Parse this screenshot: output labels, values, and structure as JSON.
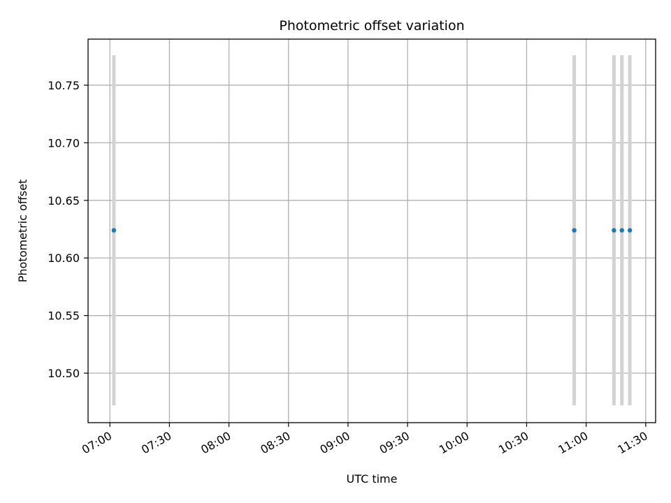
{
  "chart_data": {
    "type": "scatter",
    "title": "Photometric offset variation",
    "xlabel": "UTC time",
    "ylabel": "Photometric offset",
    "grid": true,
    "x_ticks": [
      "07:00",
      "07:30",
      "08:00",
      "08:30",
      "09:00",
      "09:30",
      "10:00",
      "10:30",
      "11:00",
      "11:30"
    ],
    "y_ticks": [
      "10.50",
      "10.55",
      "10.60",
      "10.65",
      "10.70",
      "10.75"
    ],
    "xlim": [
      "06:49",
      "11:35"
    ],
    "ylim": [
      10.457,
      10.79
    ],
    "points": [
      {
        "x": "07:02",
        "y": 10.624,
        "err_low": 10.472,
        "err_high": 10.776
      },
      {
        "x": "10:54",
        "y": 10.624,
        "err_low": 10.472,
        "err_high": 10.776
      },
      {
        "x": "11:14",
        "y": 10.624,
        "err_low": 10.472,
        "err_high": 10.776
      },
      {
        "x": "11:18",
        "y": 10.624,
        "err_low": 10.472,
        "err_high": 10.776
      },
      {
        "x": "11:22",
        "y": 10.624,
        "err_low": 10.472,
        "err_high": 10.776
      }
    ],
    "colors": {
      "marker": "#1f77b4",
      "errorbar": "#d3d3d3",
      "grid": "#b0b0b0"
    }
  }
}
